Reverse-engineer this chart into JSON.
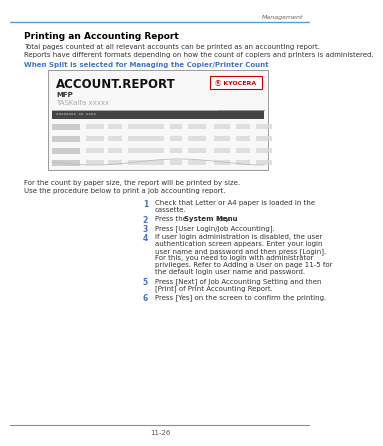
{
  "bg_color": "#ffffff",
  "header_text": "Management",
  "header_line_color": "#5b9bd5",
  "title": "Printing an Accounting Report",
  "para1": "Total pages counted at all relevant accounts can be printed as an accounting report.",
  "para2": "Reports have different formats depending on how the count of copiers and printers is administered.",
  "blue_heading": "When Split is selected for Managing the Copier/Printer Count",
  "blue_color": "#4472c4",
  "footer_text": "11-26",
  "pre_step_text1": "For the count by paper size, the report will be printed by size.",
  "pre_step_text2": "Use the procedure below to print a job accounting report.",
  "steps": [
    {
      "num": "1",
      "text": "Check that Letter or A4 paper is loaded in the\ncassette."
    },
    {
      "num": "2",
      "text_parts": [
        [
          "Press the ",
          "normal"
        ],
        [
          "System Menu",
          "bold"
        ],
        [
          " key.",
          "normal"
        ]
      ]
    },
    {
      "num": "3",
      "text": "Press [User Login/Job Accounting]."
    },
    {
      "num": "4",
      "text": "If user login administration is disabled, the user\nauthentication screen appears. Enter your login\nuser name and password and then press [Login].\nFor this, you need to login with administrator\nprivileges. Refer to Adding a User on page 11-5 for\nthe default login user name and password."
    },
    {
      "num": "5",
      "text": "Press [Next] of Job Accounting Setting and then\n[Print] of Print Accounting Report."
    },
    {
      "num": "6",
      "text": "Press [Yes] on the screen to confirm the printing."
    }
  ]
}
